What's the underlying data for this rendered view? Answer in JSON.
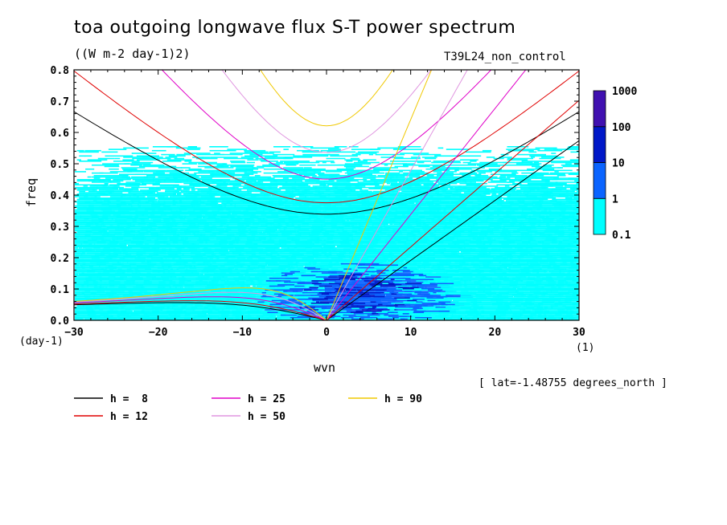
{
  "title": "toa outgoing longwave flux S-T power spectrum",
  "units": "((W m-2 day-1)2)",
  "run_name": "T39L24_non_control",
  "lat_note": "[ lat=-1.48755 degrees_north ]",
  "chart_data": {
    "type": "heatmap",
    "xlabel": "wvn",
    "ylabel": "freq",
    "x_units": "(1)",
    "y_units": "(day-1)",
    "xlim": [
      -30,
      30
    ],
    "ylim": [
      0,
      0.8
    ],
    "x_ticks": [
      -30,
      -20,
      -10,
      0,
      10,
      20,
      30
    ],
    "y_ticks": [
      0.0,
      0.1,
      0.2,
      0.3,
      0.4,
      0.5,
      0.6,
      0.7,
      0.8
    ],
    "y_tick_labels": [
      "0.0",
      "0.1",
      "0.2",
      "0.3",
      "0.4",
      "0.5",
      "0.6",
      "0.7",
      "0.8"
    ],
    "colorbar": {
      "levels": [
        "0.1",
        "1",
        "10",
        "100",
        "1000"
      ],
      "colors": [
        "#00ffff",
        "#0a64ff",
        "#0018c8",
        "#4010b0"
      ]
    },
    "dispersion_curves": [
      {
        "label": "h =  8",
        "h": 8,
        "color": "#000000"
      },
      {
        "label": "h = 12",
        "h": 12,
        "color": "#e00000"
      },
      {
        "label": "h = 25",
        "h": 25,
        "color": "#e000c8"
      },
      {
        "label": "h = 50",
        "h": 50,
        "color": "#e096e0"
      },
      {
        "label": "h = 90",
        "h": 90,
        "color": "#f0c800"
      }
    ]
  }
}
